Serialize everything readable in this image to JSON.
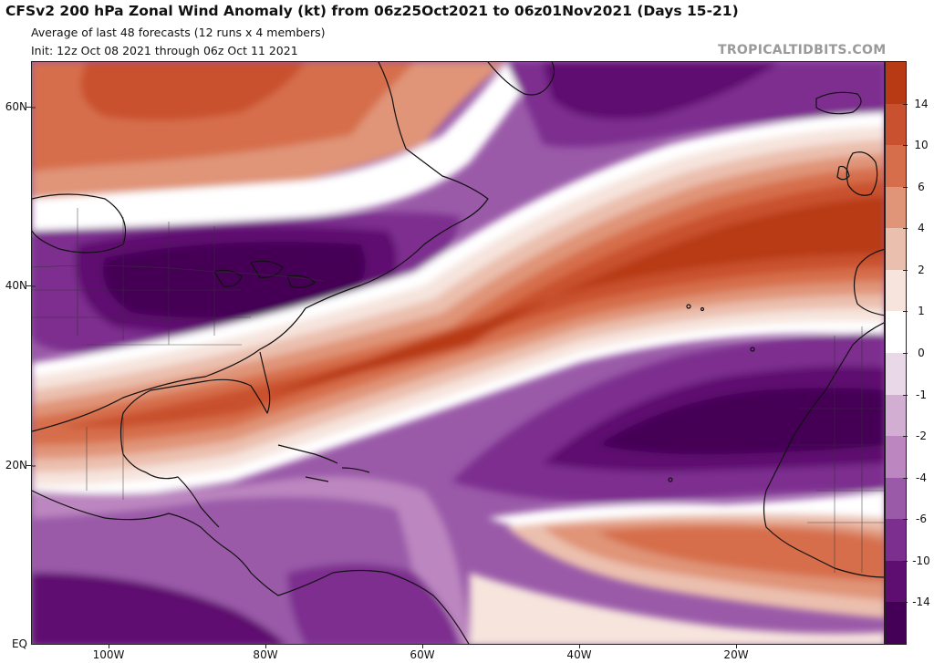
{
  "header": {
    "title": "CFSv2 200 hPa Zonal Wind Anomaly (kt) from 06z25Oct2021 to 06z01Nov2021 (Days 15-21)",
    "subtitle_1": "Average of last 48 forecasts (12 runs x 4 members)",
    "subtitle_2": "Init: 12z Oct 08 2021 through 06z Oct 11 2021",
    "brand": "TROPICALTIDBITS.COM"
  },
  "map": {
    "variable": "200 hPa zonal wind anomaly",
    "units": "kt",
    "region": "North Atlantic / Eastern North America / West Africa",
    "lat_labels": [
      "60N",
      "40N",
      "20N",
      "EQ"
    ],
    "lon_labels": [
      "100W",
      "80W",
      "60W",
      "40W",
      "20W"
    ],
    "features": [
      {
        "label": "Strong positive anomaly band (jet) from Gulf of Mexico NE to Iberia",
        "sign": "positive"
      },
      {
        "label": "Negative anomaly over Great Lakes / NE US",
        "sign": "negative"
      },
      {
        "label": "Negative anomaly over subtropical East Atlantic / NW Africa",
        "sign": "negative"
      },
      {
        "label": "Positive anomaly over Greenland/Labrador region",
        "sign": "positive"
      },
      {
        "label": "Positive anomaly over tropical East Atlantic / West Africa",
        "sign": "positive"
      },
      {
        "label": "Negative anomaly over Caribbean / tropics",
        "sign": "negative"
      }
    ]
  },
  "colorbar": {
    "labels": [
      "14",
      "10",
      "6",
      "4",
      "2",
      "1",
      "0",
      "-1",
      "-2",
      "-4",
      "-6",
      "-10",
      "-14"
    ],
    "colors": [
      "#b83a15",
      "#c9512f",
      "#d66e4c",
      "#e09478",
      "#ebbfae",
      "#f6e4dd",
      "#ffffff",
      "#e8d8e8",
      "#d2aed2",
      "#bc86c0",
      "#9a5aa8",
      "#7d2f8f",
      "#5e0e70",
      "#440056"
    ]
  }
}
